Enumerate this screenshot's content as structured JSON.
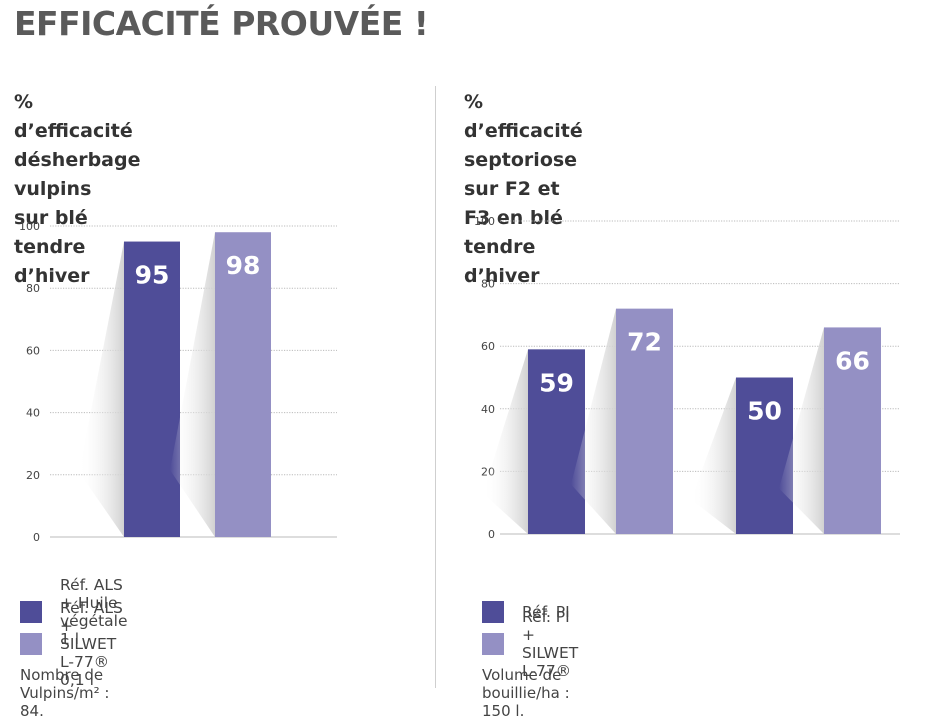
{
  "page": {
    "title": "EFFICACITÉ PROUVÉE !"
  },
  "colors": {
    "ref_dark": "#4f4d98",
    "silwet_light": "#9490c4",
    "grid": "#bbbbbb",
    "shadow": "#cfcfcf"
  },
  "chart_data": [
    {
      "type": "bar",
      "title_lines": [
        "% d’efficacité désherbage vulpins",
        "sur blé tendre d’hiver"
      ],
      "categories": [
        ""
      ],
      "series": [
        {
          "name": "Réf. ALS + Huile végétale 1 l",
          "values": [
            95
          ],
          "color": "#4f4d98"
        },
        {
          "name": "Réf. ALS + SILWET L-77® 0,1 l",
          "values": [
            98
          ],
          "color": "#9490c4"
        }
      ],
      "yticks": [
        "0",
        "20",
        "40",
        "60",
        "80",
        "100"
      ],
      "ylim": [
        0,
        100
      ],
      "grid": true,
      "legend_position": "bottom",
      "note": "Nombre de Vulpins/m² : 84."
    },
    {
      "type": "bar",
      "title_lines": [
        "% d’efficacité septoriose",
        "sur F2 et F3 en blé tendre d’hiver"
      ],
      "categories": [
        "",
        ""
      ],
      "series": [
        {
          "name": "Réf. PI",
          "values": [
            59,
            50
          ],
          "color": "#4f4d98"
        },
        {
          "name": "Réf. PI + SILWET L-77®",
          "values": [
            72,
            66
          ],
          "color": "#9490c4"
        }
      ],
      "yticks": [
        "0",
        "20",
        "40",
        "60",
        "80",
        "100"
      ],
      "ylim": [
        0,
        100
      ],
      "grid": true,
      "legend_position": "bottom",
      "note": "Volume de bouillie/ha : 150 l."
    }
  ]
}
